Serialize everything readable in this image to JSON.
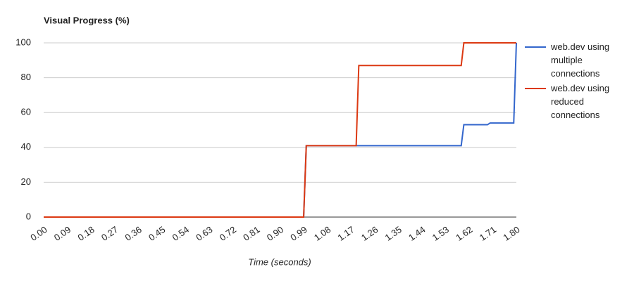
{
  "chart_data": {
    "type": "line",
    "title": "Visual Progress (%)",
    "x_label": "Time (seconds)",
    "xlim": [
      0,
      1.8
    ],
    "xticks": [
      {
        "value": 0,
        "label": "0.00"
      },
      0.09,
      0.18,
      0.27,
      0.36,
      0.45,
      0.54,
      0.63,
      0.72,
      0.81,
      {
        "value": 0.9,
        "label": "0.90"
      },
      0.99,
      1.08,
      1.17,
      1.26,
      1.35,
      1.44,
      1.53,
      1.62,
      1.71,
      {
        "value": 1.8,
        "label": "1.80"
      }
    ],
    "ylim": [
      0,
      100
    ],
    "yticks": [
      0,
      20,
      40,
      60,
      80,
      100
    ],
    "grid": true,
    "legend": "right",
    "series": [
      {
        "name": "web.dev using multiple connections",
        "color": "#3366cc",
        "x": [
          0,
          0.99,
          1.0,
          1.59,
          1.6,
          1.69,
          1.7,
          1.79,
          1.8
        ],
        "values": [
          0,
          0,
          41,
          41,
          53,
          53,
          54,
          54,
          100
        ]
      },
      {
        "name": "web.dev using reduced connections",
        "color": "#dc3912",
        "x": [
          0,
          0.99,
          1.0,
          1.19,
          1.2,
          1.59,
          1.6,
          1.8
        ],
        "values": [
          0,
          0,
          41,
          41,
          87,
          87,
          100,
          100
        ]
      }
    ]
  }
}
